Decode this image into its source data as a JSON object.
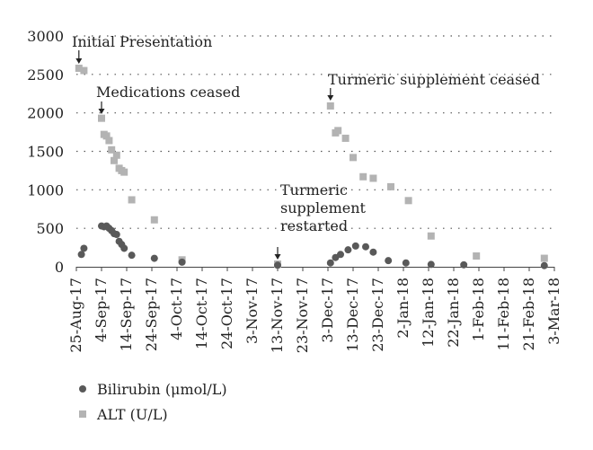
{
  "chart_data": {
    "type": "scatter",
    "xlabel": "",
    "ylabel": "",
    "ylim": [
      0,
      3000
    ],
    "yticks": [
      0,
      500,
      1000,
      1500,
      2000,
      2500,
      3000
    ],
    "xlim": [
      "2017-08-25",
      "2018-03-03"
    ],
    "xticks": [
      {
        "date": "2017-08-25",
        "label": "25-Aug-17"
      },
      {
        "date": "2017-09-04",
        "label": "4-Sep-17"
      },
      {
        "date": "2017-09-14",
        "label": "14-Sep-17"
      },
      {
        "date": "2017-09-24",
        "label": "24-Sep-17"
      },
      {
        "date": "2017-10-04",
        "label": "4-Oct-17"
      },
      {
        "date": "2017-10-14",
        "label": "14-Oct-17"
      },
      {
        "date": "2017-10-24",
        "label": "24-Oct-17"
      },
      {
        "date": "2017-11-03",
        "label": "3-Nov-17"
      },
      {
        "date": "2017-11-13",
        "label": "13-Nov-17"
      },
      {
        "date": "2017-11-23",
        "label": "23-Nov-17"
      },
      {
        "date": "2017-12-03",
        "label": "3-Dec-17"
      },
      {
        "date": "2017-12-13",
        "label": "13-Dec-17"
      },
      {
        "date": "2017-12-23",
        "label": "23-Dec-17"
      },
      {
        "date": "2018-01-02",
        "label": "2-Jan-18"
      },
      {
        "date": "2018-01-12",
        "label": "12-Jan-18"
      },
      {
        "date": "2018-01-22",
        "label": "22-Jan-18"
      },
      {
        "date": "2018-02-01",
        "label": "1-Feb-18"
      },
      {
        "date": "2018-02-11",
        "label": "11-Feb-18"
      },
      {
        "date": "2018-02-21",
        "label": "21-Feb-18"
      },
      {
        "date": "2018-03-03",
        "label": "3-Mar-18"
      }
    ],
    "grid": "horizontal-dotted",
    "legend_position": "bottom-left",
    "series": [
      {
        "name": "Bilirubin (μmol/L)",
        "marker": "circle",
        "color": "#595959",
        "points": [
          {
            "x": "2017-08-27",
            "y": 160
          },
          {
            "x": "2017-08-28",
            "y": 240
          },
          {
            "x": "2017-09-04",
            "y": 530
          },
          {
            "x": "2017-09-05",
            "y": 520
          },
          {
            "x": "2017-09-06",
            "y": 530
          },
          {
            "x": "2017-09-07",
            "y": 500
          },
          {
            "x": "2017-09-08",
            "y": 470
          },
          {
            "x": "2017-09-09",
            "y": 430
          },
          {
            "x": "2017-09-10",
            "y": 420
          },
          {
            "x": "2017-09-11",
            "y": 330
          },
          {
            "x": "2017-09-12",
            "y": 290
          },
          {
            "x": "2017-09-13",
            "y": 240
          },
          {
            "x": "2017-09-16",
            "y": 150
          },
          {
            "x": "2017-09-25",
            "y": 110
          },
          {
            "x": "2017-10-06",
            "y": 60
          },
          {
            "x": "2017-11-13",
            "y": 20
          },
          {
            "x": "2017-12-04",
            "y": 50
          },
          {
            "x": "2017-12-06",
            "y": 120
          },
          {
            "x": "2017-12-08",
            "y": 160
          },
          {
            "x": "2017-12-11",
            "y": 220
          },
          {
            "x": "2017-12-14",
            "y": 270
          },
          {
            "x": "2017-12-18",
            "y": 260
          },
          {
            "x": "2017-12-21",
            "y": 190
          },
          {
            "x": "2017-12-27",
            "y": 80
          },
          {
            "x": "2018-01-03",
            "y": 50
          },
          {
            "x": "2018-01-13",
            "y": 30
          },
          {
            "x": "2018-01-26",
            "y": 25
          },
          {
            "x": "2018-02-27",
            "y": 15
          }
        ]
      },
      {
        "name": "ALT (U/L)",
        "marker": "square",
        "color": "#b3b3b3",
        "points": [
          {
            "x": "2017-08-26",
            "y": 2580
          },
          {
            "x": "2017-08-28",
            "y": 2550
          },
          {
            "x": "2017-09-04",
            "y": 1930
          },
          {
            "x": "2017-09-05",
            "y": 1720
          },
          {
            "x": "2017-09-06",
            "y": 1700
          },
          {
            "x": "2017-09-07",
            "y": 1640
          },
          {
            "x": "2017-09-08",
            "y": 1520
          },
          {
            "x": "2017-09-09",
            "y": 1380
          },
          {
            "x": "2017-09-10",
            "y": 1450
          },
          {
            "x": "2017-09-11",
            "y": 1280
          },
          {
            "x": "2017-09-12",
            "y": 1250
          },
          {
            "x": "2017-09-13",
            "y": 1230
          },
          {
            "x": "2017-09-16",
            "y": 870
          },
          {
            "x": "2017-09-25",
            "y": 610
          },
          {
            "x": "2017-10-06",
            "y": 90
          },
          {
            "x": "2017-11-13",
            "y": 35
          },
          {
            "x": "2017-12-04",
            "y": 2090
          },
          {
            "x": "2017-12-06",
            "y": 1740
          },
          {
            "x": "2017-12-07",
            "y": 1770
          },
          {
            "x": "2017-12-10",
            "y": 1670
          },
          {
            "x": "2017-12-13",
            "y": 1420
          },
          {
            "x": "2017-12-17",
            "y": 1170
          },
          {
            "x": "2017-12-21",
            "y": 1150
          },
          {
            "x": "2017-12-28",
            "y": 1040
          },
          {
            "x": "2018-01-04",
            "y": 860
          },
          {
            "x": "2018-01-13",
            "y": 400
          },
          {
            "x": "2018-01-31",
            "y": 140
          },
          {
            "x": "2018-02-27",
            "y": 110
          }
        ]
      }
    ],
    "annotations": [
      {
        "id": "initial-presentation",
        "lines": [
          "Initial Presentation"
        ],
        "x": "2017-08-26"
      },
      {
        "id": "medications-ceased",
        "lines": [
          "Medications ceased"
        ],
        "x": "2017-09-04"
      },
      {
        "id": "turmeric-supplement-ceased",
        "lines": [
          "Turmeric supplement ceased"
        ],
        "x": "2017-12-04"
      },
      {
        "id": "turmeric-supplement-restarted",
        "lines": [
          "Turmeric",
          "supplement",
          "restarted"
        ],
        "x": "2017-11-13"
      }
    ]
  }
}
